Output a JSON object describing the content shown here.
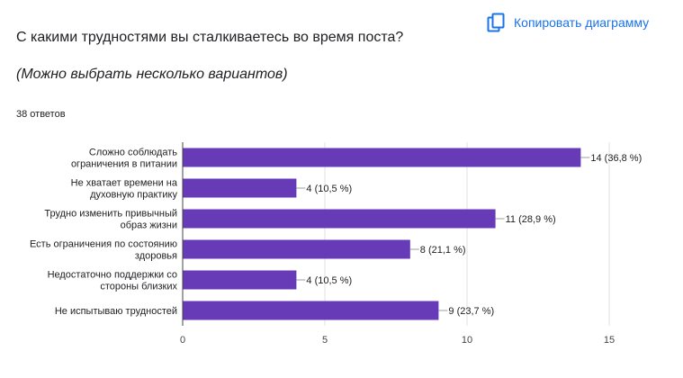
{
  "header": {
    "copy_label": "Копировать диаграмму",
    "copy_icon": "copy-icon",
    "accent_color": "#1a73e8"
  },
  "question": {
    "title": "С какими трудностями вы сталкиваетесь во время поста?",
    "subtitle": "(Можно выбрать несколько вариантов)",
    "responses": "38 ответов"
  },
  "chart_data": {
    "type": "bar",
    "orientation": "horizontal",
    "bar_color": "#673ab7",
    "categories": [
      [
        "Сложно соблюдать",
        "ограничения в питании"
      ],
      [
        "Не хватает времени на",
        "духовную практику"
      ],
      [
        "Трудно изменить привычный",
        "образ жизни"
      ],
      [
        "Есть ограничения по состоянию",
        "здоровья"
      ],
      [
        "Недостаточно поддержки со",
        "стороны близких"
      ],
      [
        "Не испытываю трудностей"
      ]
    ],
    "values": [
      14,
      4,
      11,
      8,
      4,
      9
    ],
    "value_labels": [
      "14 (36,8 %)",
      "4 (10,5 %)",
      "11 (28,9 %)",
      "8 (21,1 %)",
      "4 (10,5 %)",
      "9 (23,7 %)"
    ],
    "xlim": [
      0,
      15
    ],
    "xticks": [
      0,
      5,
      10,
      15
    ],
    "grid": true
  }
}
